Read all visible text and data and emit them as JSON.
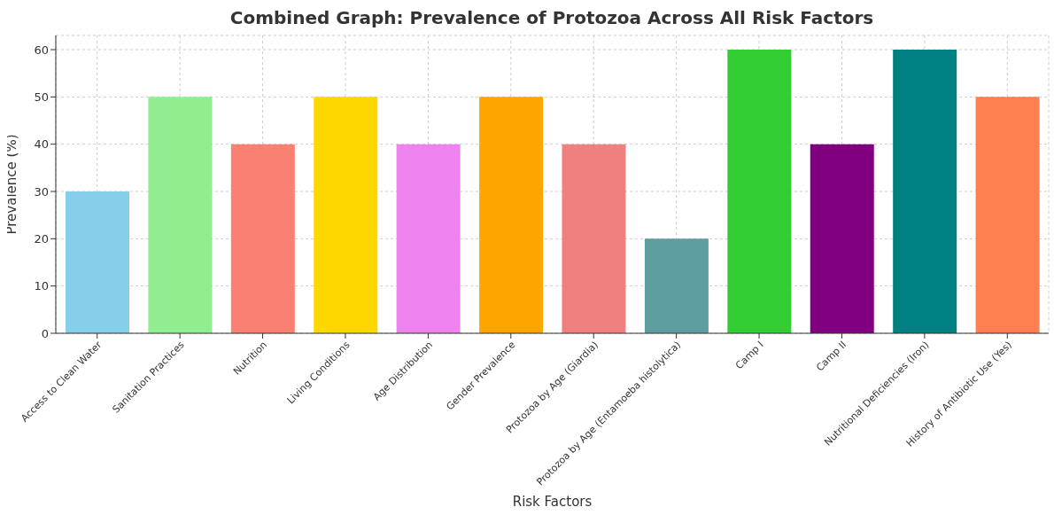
{
  "chart_data": {
    "type": "bar",
    "title": "Combined Graph: Prevalence of Protozoa Across All Risk Factors",
    "xlabel": "Risk Factors",
    "ylabel": "Prevalence (%)",
    "categories": [
      "Access to Clean Water",
      "Sanitation Practices",
      "Nutrition",
      "Living Conditions",
      "Age Distribution",
      "Gender Prevalence",
      "Protozoa by Age (Giardia)",
      "Protozoa by Age (Entamoeba histolytica)",
      "Camp I",
      "Camp II",
      "Nutritional Deficiencies (Iron)",
      "History of Antibiotic Use (Yes)"
    ],
    "values": [
      30,
      50,
      40,
      50,
      40,
      50,
      40,
      20,
      60,
      40,
      60,
      50
    ],
    "colors": [
      "#87ceeb",
      "#90ee90",
      "#fa8072",
      "#ffd700",
      "#ee82ee",
      "#ffa500",
      "#f08080",
      "#5f9ea0",
      "#32cd32",
      "#800080",
      "#008080",
      "#ff7f50"
    ],
    "ylim": [
      0,
      63
    ],
    "yticks": [
      0,
      10,
      20,
      30,
      40,
      50,
      60
    ],
    "grid": true
  }
}
